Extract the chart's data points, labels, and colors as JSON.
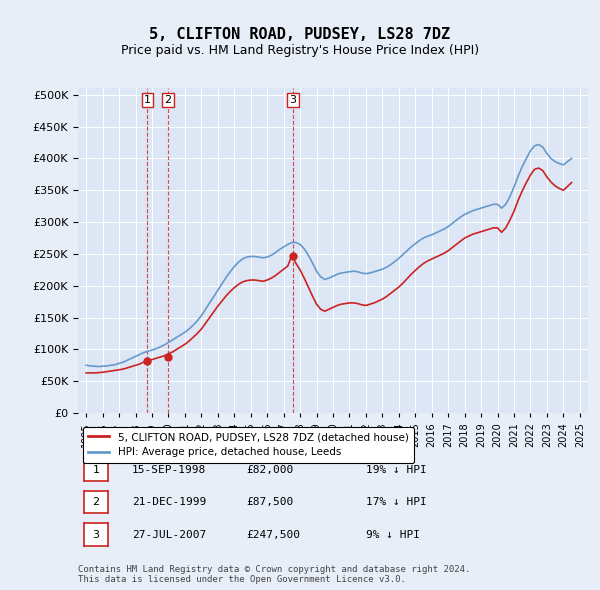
{
  "title": "5, CLIFTON ROAD, PUDSEY, LS28 7DZ",
  "subtitle": "Price paid vs. HM Land Registry's House Price Index (HPI)",
  "background_color": "#e8eef8",
  "plot_bg_color": "#dce6f5",
  "legend_label_red": "5, CLIFTON ROAD, PUDSEY, LS28 7DZ (detached house)",
  "legend_label_blue": "HPI: Average price, detached house, Leeds",
  "footer": "Contains HM Land Registry data © Crown copyright and database right 2024.\nThis data is licensed under the Open Government Licence v3.0.",
  "transactions": [
    {
      "num": 1,
      "date": "15-SEP-1998",
      "price": 82000,
      "pct": "19%",
      "dir": "↓",
      "year_x": 1998.71
    },
    {
      "num": 2,
      "date": "21-DEC-1999",
      "price": 87500,
      "pct": "17%",
      "dir": "↓",
      "year_x": 1999.97
    },
    {
      "num": 3,
      "date": "27-JUL-2007",
      "price": 247500,
      "pct": "9%",
      "dir": "↓",
      "year_x": 2007.57
    }
  ],
  "ylim": [
    0,
    510000
  ],
  "yticks": [
    0,
    50000,
    100000,
    150000,
    200000,
    250000,
    300000,
    350000,
    400000,
    450000,
    500000
  ],
  "xlim": [
    1994.5,
    2025.5
  ],
  "hpi_color": "#6699cc",
  "price_color": "#cc2222",
  "hpi_data": {
    "years": [
      1995.0,
      1995.25,
      1995.5,
      1995.75,
      1996.0,
      1996.25,
      1996.5,
      1996.75,
      1997.0,
      1997.25,
      1997.5,
      1997.75,
      1998.0,
      1998.25,
      1998.5,
      1998.75,
      1999.0,
      1999.25,
      1999.5,
      1999.75,
      2000.0,
      2000.25,
      2000.5,
      2000.75,
      2001.0,
      2001.25,
      2001.5,
      2001.75,
      2002.0,
      2002.25,
      2002.5,
      2002.75,
      2003.0,
      2003.25,
      2003.5,
      2003.75,
      2004.0,
      2004.25,
      2004.5,
      2004.75,
      2005.0,
      2005.25,
      2005.5,
      2005.75,
      2006.0,
      2006.25,
      2006.5,
      2006.75,
      2007.0,
      2007.25,
      2007.5,
      2007.75,
      2008.0,
      2008.25,
      2008.5,
      2008.75,
      2009.0,
      2009.25,
      2009.5,
      2009.75,
      2010.0,
      2010.25,
      2010.5,
      2010.75,
      2011.0,
      2011.25,
      2011.5,
      2011.75,
      2012.0,
      2012.25,
      2012.5,
      2012.75,
      2013.0,
      2013.25,
      2013.5,
      2013.75,
      2014.0,
      2014.25,
      2014.5,
      2014.75,
      2015.0,
      2015.25,
      2015.5,
      2015.75,
      2016.0,
      2016.25,
      2016.5,
      2016.75,
      2017.0,
      2017.25,
      2017.5,
      2017.75,
      2018.0,
      2018.25,
      2018.5,
      2018.75,
      2019.0,
      2019.25,
      2019.5,
      2019.75,
      2020.0,
      2020.25,
      2020.5,
      2020.75,
      2021.0,
      2021.25,
      2021.5,
      2021.75,
      2022.0,
      2022.25,
      2022.5,
      2022.75,
      2023.0,
      2023.25,
      2023.5,
      2023.75,
      2024.0,
      2024.25,
      2024.5
    ],
    "values": [
      75000,
      74000,
      73500,
      73000,
      73500,
      74000,
      75000,
      76000,
      78000,
      80000,
      83000,
      86000,
      89000,
      92000,
      95000,
      97000,
      99000,
      101000,
      104000,
      107000,
      111000,
      115000,
      119000,
      123000,
      127000,
      132000,
      138000,
      145000,
      153000,
      163000,
      173000,
      183000,
      193000,
      203000,
      213000,
      222000,
      230000,
      237000,
      242000,
      245000,
      246000,
      246000,
      245000,
      244000,
      245000,
      248000,
      252000,
      257000,
      261000,
      265000,
      268000,
      268000,
      265000,
      258000,
      248000,
      236000,
      223000,
      214000,
      210000,
      212000,
      215000,
      218000,
      220000,
      221000,
      222000,
      223000,
      222000,
      220000,
      219000,
      220000,
      222000,
      224000,
      226000,
      229000,
      233000,
      238000,
      243000,
      249000,
      255000,
      261000,
      266000,
      271000,
      275000,
      278000,
      280000,
      283000,
      286000,
      289000,
      293000,
      298000,
      303000,
      308000,
      312000,
      315000,
      318000,
      320000,
      322000,
      324000,
      326000,
      328000,
      328000,
      322000,
      328000,
      340000,
      355000,
      372000,
      387000,
      400000,
      412000,
      420000,
      422000,
      418000,
      408000,
      400000,
      395000,
      392000,
      390000,
      395000,
      400000
    ]
  },
  "price_data": {
    "years": [
      1995.0,
      1995.25,
      1995.5,
      1995.75,
      1996.0,
      1996.25,
      1996.5,
      1996.75,
      1997.0,
      1997.25,
      1997.5,
      1997.75,
      1998.0,
      1998.25,
      1998.5,
      1998.75,
      1999.0,
      1999.25,
      1999.5,
      1999.75,
      2000.0,
      2000.25,
      2000.5,
      2000.75,
      2001.0,
      2001.25,
      2001.5,
      2001.75,
      2002.0,
      2002.25,
      2002.5,
      2002.75,
      2003.0,
      2003.25,
      2003.5,
      2003.75,
      2004.0,
      2004.25,
      2004.5,
      2004.75,
      2005.0,
      2005.25,
      2005.5,
      2005.75,
      2006.0,
      2006.25,
      2006.5,
      2006.75,
      2007.0,
      2007.25,
      2007.5,
      2007.75,
      2008.0,
      2008.25,
      2008.5,
      2008.75,
      2009.0,
      2009.25,
      2009.5,
      2009.75,
      2010.0,
      2010.25,
      2010.5,
      2010.75,
      2011.0,
      2011.25,
      2011.5,
      2011.75,
      2012.0,
      2012.25,
      2012.5,
      2012.75,
      2013.0,
      2013.25,
      2013.5,
      2013.75,
      2014.0,
      2014.25,
      2014.5,
      2014.75,
      2015.0,
      2015.25,
      2015.5,
      2015.75,
      2016.0,
      2016.25,
      2016.5,
      2016.75,
      2017.0,
      2017.25,
      2017.5,
      2017.75,
      2018.0,
      2018.25,
      2018.5,
      2018.75,
      2019.0,
      2019.25,
      2019.5,
      2019.75,
      2020.0,
      2020.25,
      2020.5,
      2020.75,
      2021.0,
      2021.25,
      2021.5,
      2021.75,
      2022.0,
      2022.25,
      2022.5,
      2022.75,
      2023.0,
      2023.25,
      2023.5,
      2023.75,
      2024.0,
      2024.25,
      2024.5
    ],
    "values": [
      63000,
      63000,
      63000,
      63500,
      64000,
      65000,
      66000,
      67000,
      68000,
      69000,
      71000,
      73000,
      75000,
      77000,
      80000,
      82000,
      84000,
      86000,
      88000,
      90000,
      93000,
      96000,
      100000,
      104000,
      108000,
      113000,
      119000,
      125000,
      132000,
      141000,
      150000,
      159000,
      168000,
      176000,
      184000,
      191000,
      197000,
      202000,
      206000,
      208000,
      209000,
      209000,
      208000,
      207000,
      209000,
      212000,
      216000,
      221000,
      226000,
      231000,
      247500,
      235000,
      225000,
      212000,
      198000,
      184000,
      171000,
      163000,
      160000,
      163000,
      166000,
      169000,
      171000,
      172000,
      173000,
      173000,
      172000,
      170000,
      169000,
      171000,
      173000,
      176000,
      179000,
      183000,
      188000,
      193000,
      198000,
      204000,
      211000,
      218000,
      224000,
      230000,
      235000,
      239000,
      242000,
      245000,
      248000,
      251000,
      255000,
      260000,
      265000,
      270000,
      275000,
      278000,
      281000,
      283000,
      285000,
      287000,
      289000,
      291000,
      291000,
      284000,
      291000,
      303000,
      317000,
      334000,
      349000,
      362000,
      374000,
      383000,
      385000,
      381000,
      371000,
      363000,
      357000,
      353000,
      350000,
      356000,
      362000
    ]
  }
}
